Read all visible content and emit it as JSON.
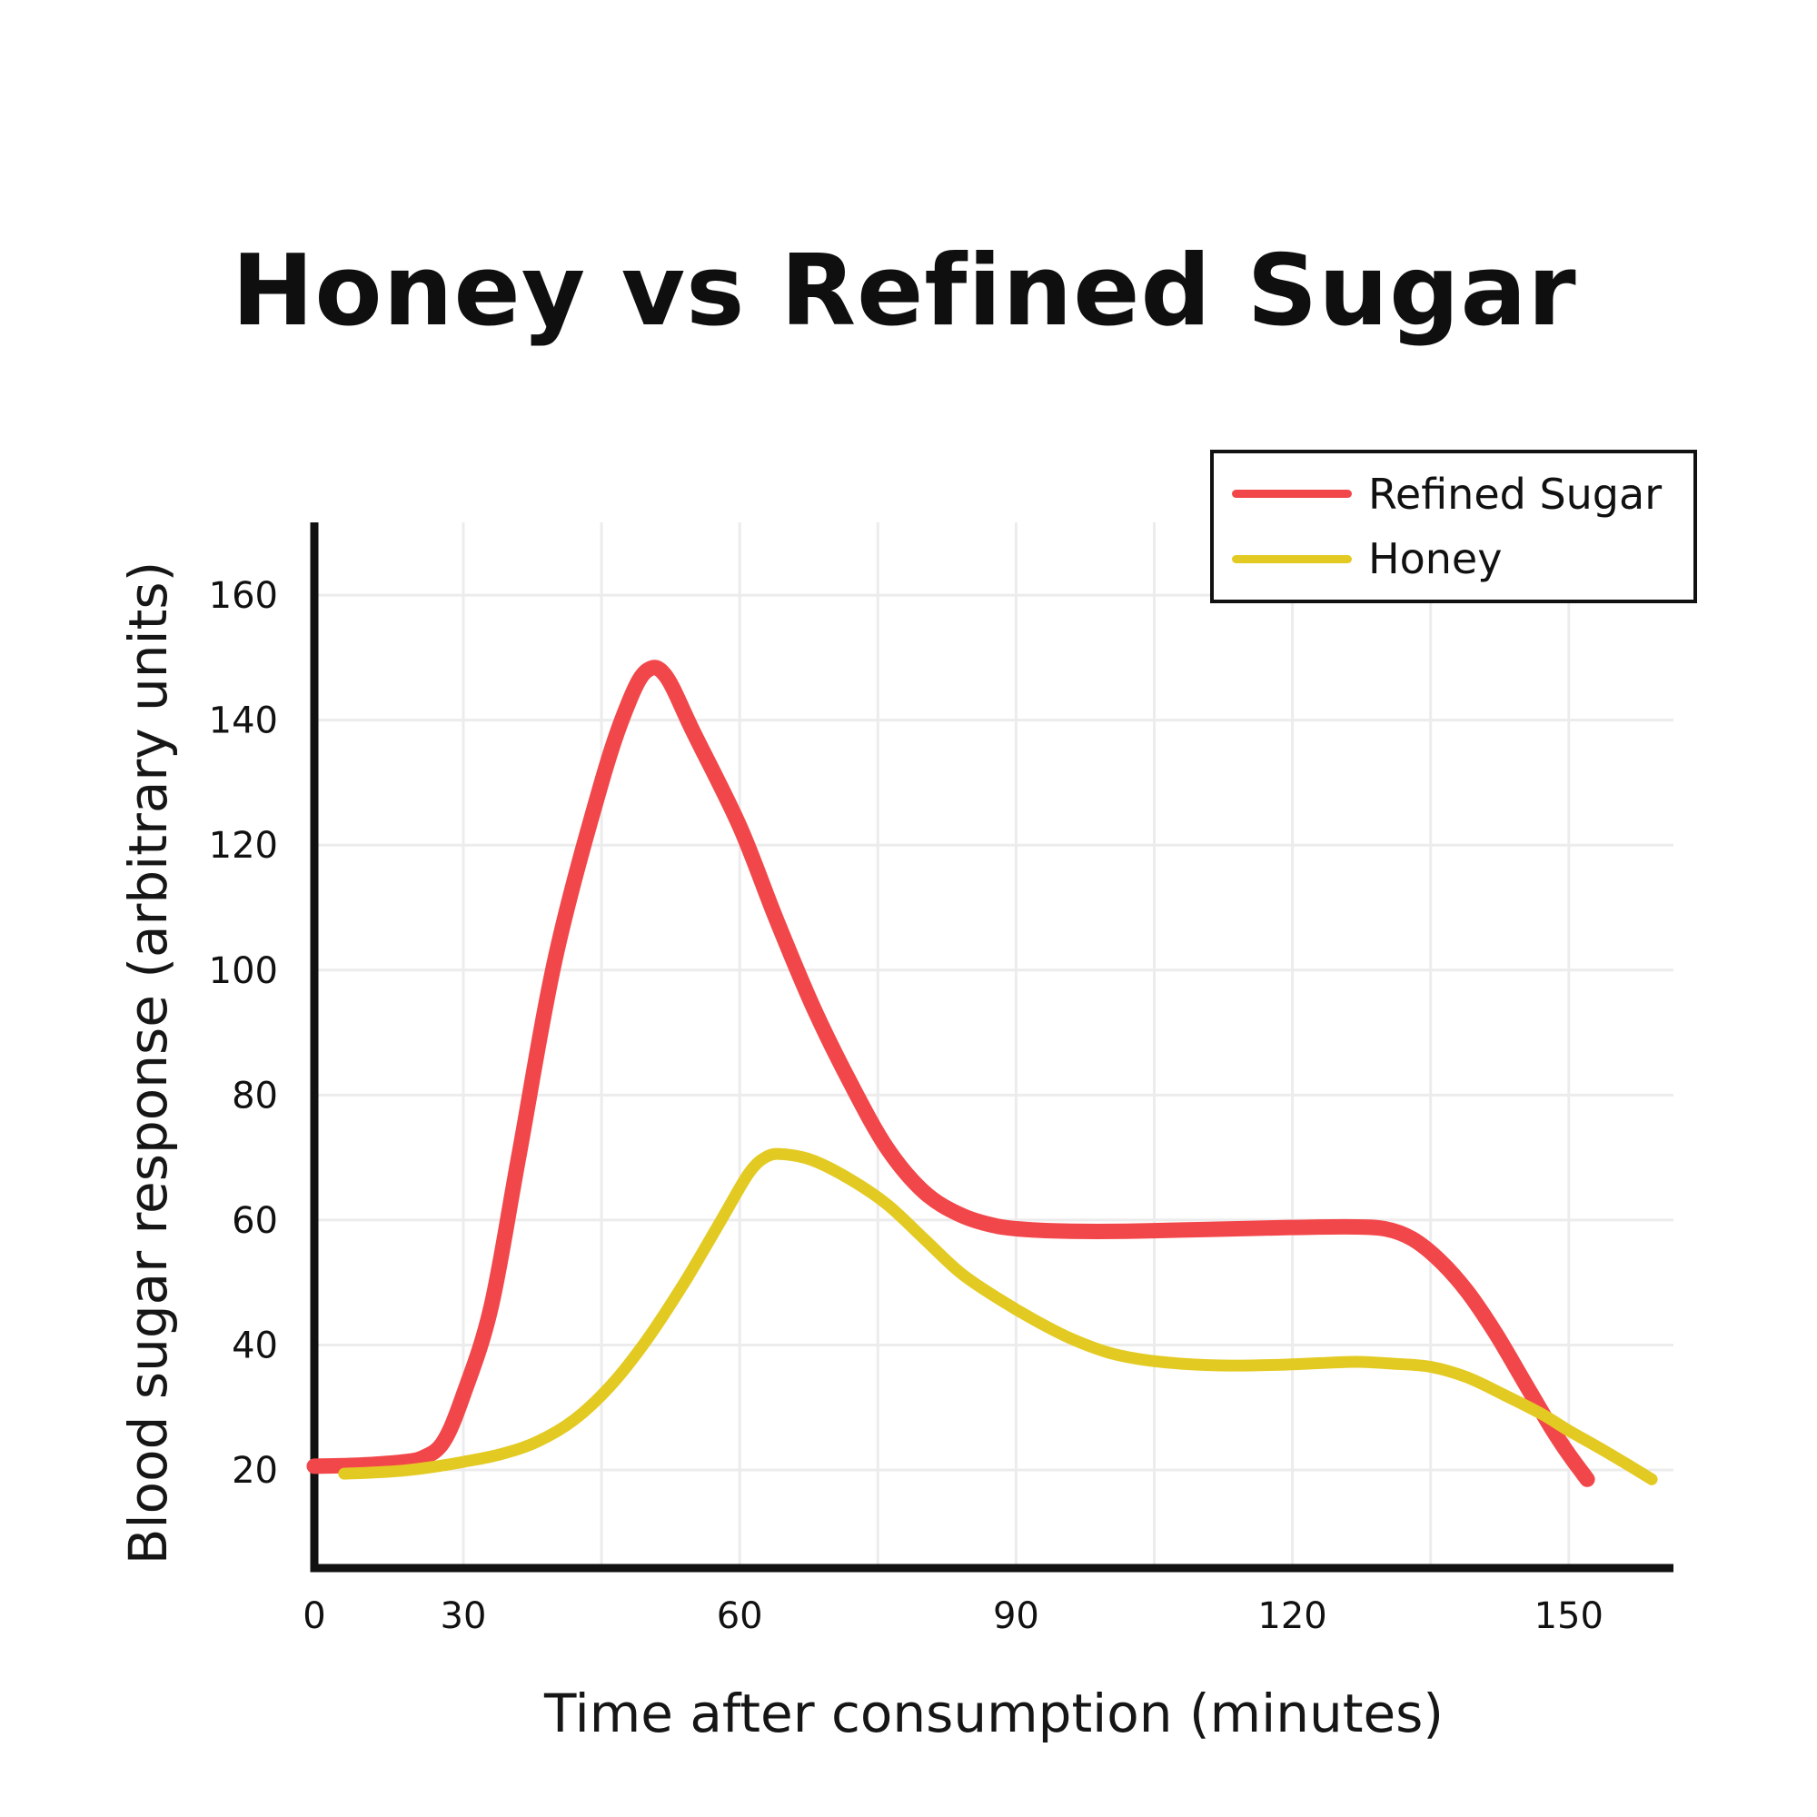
{
  "chart_data": {
    "type": "line",
    "title": "Honey vs Refined Sugar",
    "xlabel": "Time after consumption (minutes)",
    "ylabel": "Blood sugar response (arbitrary units)",
    "x_ticks": [
      0,
      30,
      60,
      90,
      120,
      150
    ],
    "x_gridline_interval_minutes": 15,
    "y_ticks": [
      20,
      40,
      60,
      80,
      100,
      120,
      140,
      160
    ],
    "ylim": [
      0,
      172
    ],
    "xlim": [
      0,
      160
    ],
    "grid": true,
    "legend_position": "top-right",
    "series": [
      {
        "name": "Refined Sugar",
        "color": "#F2474A",
        "stroke_width": 17,
        "points": [
          [
            0,
            20.6
          ],
          [
            6,
            20.7
          ],
          [
            12,
            20.9
          ],
          [
            18,
            21.3
          ],
          [
            22,
            22
          ],
          [
            26,
            24.5
          ],
          [
            30,
            32
          ],
          [
            33,
            46
          ],
          [
            36,
            70
          ],
          [
            40,
            102
          ],
          [
            45,
            130
          ],
          [
            48,
            143
          ],
          [
            50,
            148
          ],
          [
            52,
            147
          ],
          [
            55,
            138
          ],
          [
            60,
            123
          ],
          [
            64,
            108
          ],
          [
            68,
            94
          ],
          [
            72,
            82
          ],
          [
            76,
            71.5
          ],
          [
            80,
            64.5
          ],
          [
            84,
            60.8
          ],
          [
            88,
            59
          ],
          [
            92,
            58.4
          ],
          [
            96,
            58.2
          ],
          [
            102,
            58.2
          ],
          [
            108,
            58.4
          ],
          [
            114,
            58.6
          ],
          [
            120,
            58.8
          ],
          [
            126,
            58.9
          ],
          [
            130,
            58.6
          ],
          [
            133,
            57
          ],
          [
            136,
            53.5
          ],
          [
            139,
            48.5
          ],
          [
            142,
            42
          ],
          [
            145,
            34.5
          ],
          [
            148,
            27
          ],
          [
            150,
            22.5
          ],
          [
            152,
            18.5
          ]
        ]
      },
      {
        "name": "Honey",
        "color": "#E3CA22",
        "stroke_width": 13,
        "points": [
          [
            6,
            19.4
          ],
          [
            12,
            19.6
          ],
          [
            18,
            19.9
          ],
          [
            24,
            20.5
          ],
          [
            30,
            21.3
          ],
          [
            34,
            22.5
          ],
          [
            38,
            24.5
          ],
          [
            42,
            28
          ],
          [
            46,
            33.5
          ],
          [
            50,
            41
          ],
          [
            54,
            50
          ],
          [
            58,
            60
          ],
          [
            61,
            67.5
          ],
          [
            63,
            70.2
          ],
          [
            65,
            70.5
          ],
          [
            68,
            69.5
          ],
          [
            72,
            66.5
          ],
          [
            76,
            62.5
          ],
          [
            80,
            57
          ],
          [
            84,
            51.5
          ],
          [
            88,
            47.5
          ],
          [
            92,
            44
          ],
          [
            96,
            41
          ],
          [
            100,
            38.8
          ],
          [
            104,
            37.6
          ],
          [
            108,
            37
          ],
          [
            113,
            36.7
          ],
          [
            118,
            36.8
          ],
          [
            123,
            37.1
          ],
          [
            127,
            37.3
          ],
          [
            131,
            37
          ],
          [
            135,
            36.5
          ],
          [
            139,
            34.8
          ],
          [
            143,
            32
          ],
          [
            147,
            29
          ],
          [
            150,
            26.3
          ],
          [
            153,
            23.8
          ],
          [
            156,
            21.2
          ],
          [
            159,
            18.5
          ]
        ]
      }
    ]
  },
  "theme": {
    "background": "#ffffff",
    "text_color": "#111111",
    "axis_color": "#111111",
    "gridline_color": "#ececec",
    "legend_border_color": "#111111"
  }
}
